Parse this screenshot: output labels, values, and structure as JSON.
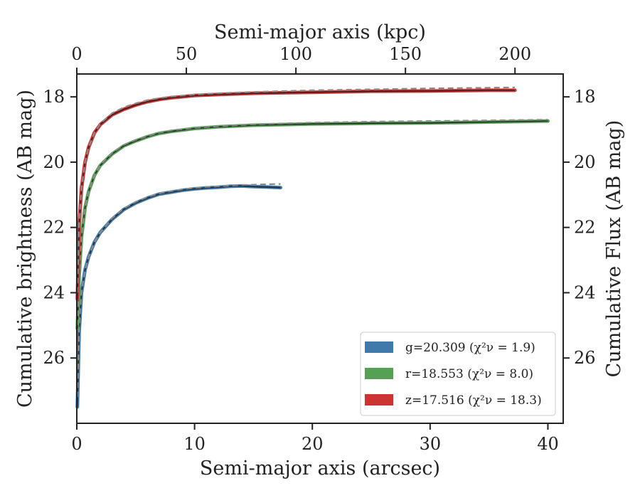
{
  "chart_data": {
    "type": "line",
    "title": "",
    "xlabel": "Semi-major axis (arcsec)",
    "ylabel": "Cumulative brightness (AB mag)",
    "x2label": "Semi-major axis (kpc)",
    "y2label": "Cumulative Flux (AB mag)",
    "xlim": [
      0,
      41.3
    ],
    "ylim": [
      28.0,
      17.3
    ],
    "x2lim": [
      0,
      222
    ],
    "y_inverted": true,
    "xticks": [
      "0",
      "10",
      "20",
      "30",
      "40"
    ],
    "yticks": [
      "18",
      "20",
      "22",
      "24",
      "26"
    ],
    "x2ticks": [
      "0",
      "50",
      "100",
      "150",
      "200"
    ],
    "y2ticks": [
      "18",
      "20",
      "22",
      "24",
      "26"
    ],
    "grid": false,
    "legend_position": "lower-right",
    "series": [
      {
        "name": "g=20.309",
        "chi_label": "(χ²ν = 1.9)",
        "color": "#3f7aaa",
        "x": [
          0.05,
          0.2,
          0.4,
          0.7,
          1.0,
          1.5,
          2.0,
          3.0,
          4.0,
          5.0,
          6.0,
          7.0,
          8.0,
          9.0,
          10.0,
          11.0,
          12.0,
          13.0,
          14.0,
          15.0,
          16.0,
          17.3
        ],
        "y": [
          27.5,
          25.2,
          24.0,
          23.3,
          22.9,
          22.45,
          22.15,
          21.75,
          21.45,
          21.25,
          21.1,
          20.98,
          20.92,
          20.86,
          20.82,
          20.79,
          20.77,
          20.74,
          20.73,
          20.75,
          20.76,
          20.78
        ],
        "model_y": [
          27.2,
          25.0,
          23.95,
          23.3,
          22.9,
          22.45,
          22.15,
          21.72,
          21.42,
          21.22,
          21.07,
          20.96,
          20.89,
          20.83,
          20.79,
          20.76,
          20.74,
          20.72,
          20.7,
          20.69,
          20.68,
          20.67
        ]
      },
      {
        "name": "r=18.553",
        "chi_label": "(χ²ν = 8.0)",
        "color": "#56a055",
        "x": [
          0.05,
          0.2,
          0.4,
          0.7,
          1.0,
          1.5,
          2.0,
          3.0,
          4.0,
          5.0,
          6.0,
          7.0,
          8.0,
          10.0,
          12.0,
          15.0,
          20.0,
          25.0,
          30.0,
          35.0,
          40.0
        ],
        "y": [
          25.1,
          23.5,
          22.3,
          21.4,
          20.9,
          20.4,
          20.1,
          19.75,
          19.5,
          19.35,
          19.22,
          19.12,
          19.06,
          18.97,
          18.92,
          18.87,
          18.83,
          18.81,
          18.8,
          18.77,
          18.74
        ],
        "model_y": [
          25.0,
          23.4,
          22.25,
          21.4,
          20.9,
          20.4,
          20.08,
          19.72,
          19.47,
          19.32,
          19.2,
          19.1,
          19.03,
          18.95,
          18.9,
          18.84,
          18.79,
          18.76,
          18.74,
          18.72,
          18.7
        ]
      },
      {
        "name": "z=17.516",
        "chi_label": "(χ²ν = 18.3)",
        "color": "#cc3333",
        "x": [
          0.05,
          0.2,
          0.4,
          0.7,
          1.0,
          1.5,
          2.0,
          3.0,
          4.0,
          5.0,
          6.0,
          7.0,
          8.0,
          10.0,
          12.0,
          15.0,
          20.0,
          25.0,
          30.0,
          35.0,
          37.2
        ],
        "y": [
          24.2,
          21.9,
          20.8,
          20.0,
          19.55,
          19.1,
          18.85,
          18.55,
          18.38,
          18.25,
          18.15,
          18.08,
          18.03,
          17.96,
          17.93,
          17.89,
          17.86,
          17.83,
          17.82,
          17.8,
          17.8
        ],
        "model_y": [
          24.0,
          21.85,
          20.8,
          20.0,
          19.55,
          19.1,
          18.82,
          18.5,
          18.32,
          18.2,
          18.1,
          18.04,
          17.99,
          17.93,
          17.89,
          17.85,
          17.8,
          17.77,
          17.74,
          17.72,
          17.71
        ]
      }
    ]
  }
}
